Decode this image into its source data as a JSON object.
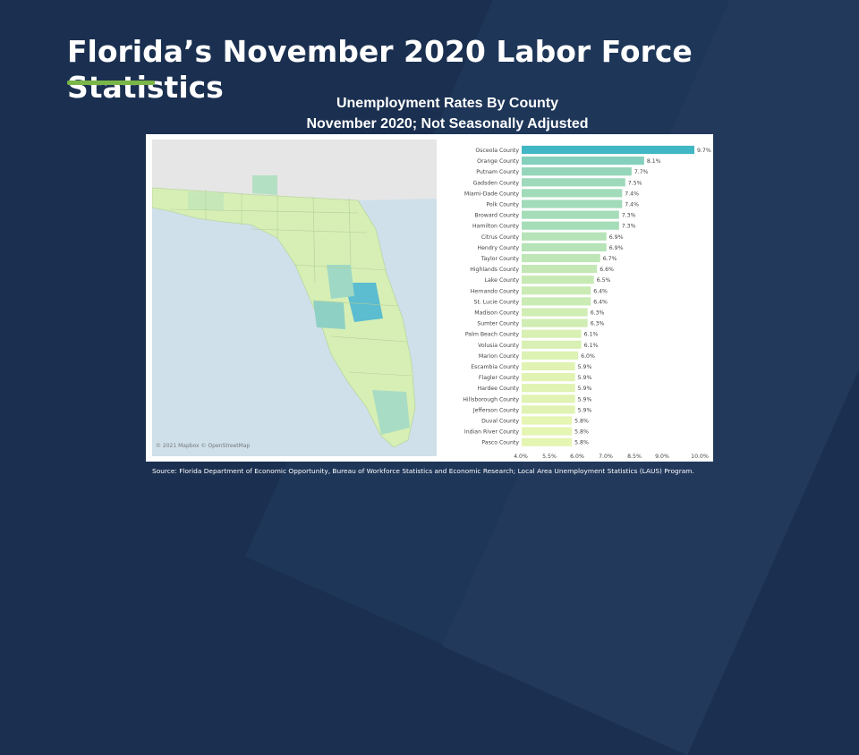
{
  "page": {
    "title": "Florida’s November 2020 Labor Force Statistics",
    "subtitle_line1": "Unemployment Rates By County",
    "subtitle_line2": "November 2020; Not Seasonally Adjusted",
    "map_credit": "© 2021 Mapbox © OpenStreetMap",
    "source": "Source: Florida Department of Economic Opportunity, Bureau of Workforce Statistics and Economic Research; Local Area Unemployment Statistics (LAUS) Program."
  },
  "colors": {
    "background": "#1b3050",
    "accent": "#7ab648",
    "bar_high": "#41b6c4",
    "bar_low": "#edf8b1",
    "map_land": "#d7efb5",
    "map_water": "#cfe0ea"
  },
  "chart_data": {
    "type": "bar",
    "orientation": "horizontal",
    "title": "Unemployment Rates By County",
    "subtitle": "November 2020; Not Seasonally Adjusted",
    "categories": [
      "Osceola County",
      "Orange County",
      "Putnam County",
      "Gadsden County",
      "Miami-Dade County",
      "Polk County",
      "Broward County",
      "Hamilton County",
      "Citrus County",
      "Hendry County",
      "Taylor County",
      "Highlands County",
      "Lake County",
      "Hernando County",
      "St. Lucie County",
      "Madison County",
      "Sumter County",
      "Palm Beach County",
      "Volusia County",
      "Marion County",
      "Escambia County",
      "Flagler County",
      "Hardee County",
      "Hillsborough County",
      "Jefferson County",
      "Duval County",
      "Indian River County",
      "Pasco County"
    ],
    "values": [
      9.7,
      8.1,
      7.7,
      7.5,
      7.4,
      7.4,
      7.3,
      7.3,
      6.9,
      6.9,
      6.7,
      6.6,
      6.5,
      6.4,
      6.4,
      6.3,
      6.3,
      6.1,
      6.1,
      6.0,
      5.9,
      5.9,
      5.9,
      5.9,
      5.9,
      5.8,
      5.8,
      5.8
    ],
    "value_labels": [
      "9.7%",
      "8.1%",
      "7.7%",
      "7.5%",
      "7.4%",
      "7.4%",
      "7.3%",
      "7.3%",
      "6.9%",
      "6.9%",
      "6.7%",
      "6.6%",
      "6.5%",
      "6.4%",
      "6.4%",
      "6.3%",
      "6.3%",
      "6.1%",
      "6.1%",
      "6.0%",
      "5.9%",
      "5.9%",
      "5.9%",
      "5.9%",
      "5.9%",
      "5.8%",
      "5.8%",
      "5.8%"
    ],
    "x_ticks": [
      "4.0%",
      "5.5%",
      "6.0%",
      "7.0%",
      "8.5%",
      "9.0%",
      "10.0%"
    ],
    "xlim": [
      4.0,
      10.0
    ],
    "grid": false
  }
}
